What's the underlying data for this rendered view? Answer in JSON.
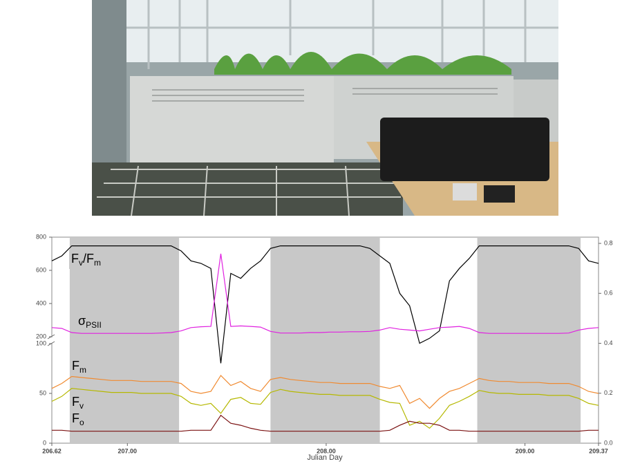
{
  "chart_data": {
    "type": "line",
    "xlabel": "Julian Day",
    "x": [
      206.62,
      206.67,
      206.72,
      206.77,
      206.82,
      206.87,
      206.92,
      206.97,
      207.02,
      207.07,
      207.12,
      207.17,
      207.22,
      207.27,
      207.32,
      207.37,
      207.42,
      207.47,
      207.52,
      207.57,
      207.62,
      207.67,
      207.72,
      207.77,
      207.82,
      207.87,
      207.92,
      207.97,
      208.02,
      208.07,
      208.12,
      208.17,
      208.22,
      208.27,
      208.32,
      208.37,
      208.42,
      208.47,
      208.52,
      208.57,
      208.62,
      208.67,
      208.72,
      208.77,
      208.82,
      208.87,
      208.92,
      208.97,
      209.02,
      209.07,
      209.12,
      209.17,
      209.22,
      209.27,
      209.32,
      209.37
    ],
    "xlim": [
      206.62,
      209.37
    ],
    "xticks": [
      206.62,
      {
        "value": 207,
        "label": "207.00"
      },
      {
        "value": 208,
        "label": "208.00"
      },
      {
        "value": 209,
        "label": "209.00"
      },
      209.37
    ],
    "ylim": [
      0,
      100
    ],
    "yticks": [
      0,
      50,
      100
    ],
    "ylim_upper": [
      200,
      800
    ],
    "yticks_upper": [
      200,
      400,
      600,
      800
    ],
    "y2lim": [
      0,
      0.825
    ],
    "y2ticks": [
      {
        "value": 0,
        "label": "0.0"
      },
      {
        "value": 0.2,
        "label": "0.2"
      },
      {
        "value": 0.4,
        "label": "0.4"
      },
      {
        "value": 0.6,
        "label": "0.6"
      },
      {
        "value": 0.8,
        "label": "0.8"
      }
    ],
    "shaded_regions": [
      [
        206.71,
        207.26
      ],
      [
        207.72,
        208.27
      ],
      [
        208.76,
        209.28
      ]
    ],
    "shade_color": "#c8c8c8",
    "series": [
      {
        "label": [
          {
            "text": "F"
          },
          {
            "text": "v",
            "sub": true
          },
          {
            "text": "/F"
          },
          {
            "text": "m",
            "sub": true
          }
        ],
        "color": "#000000",
        "axis": "y2",
        "values": [
          0.73,
          0.75,
          0.79,
          0.79,
          0.79,
          0.79,
          0.79,
          0.79,
          0.79,
          0.79,
          0.79,
          0.79,
          0.79,
          0.77,
          0.73,
          0.72,
          0.7,
          0.32,
          0.68,
          0.66,
          0.7,
          0.73,
          0.78,
          0.79,
          0.79,
          0.79,
          0.79,
          0.79,
          0.79,
          0.79,
          0.79,
          0.79,
          0.78,
          0.75,
          0.72,
          0.6,
          0.55,
          0.4,
          0.42,
          0.45,
          0.65,
          0.7,
          0.74,
          0.79,
          0.79,
          0.79,
          0.79,
          0.79,
          0.79,
          0.79,
          0.79,
          0.79,
          0.79,
          0.78,
          0.73,
          0.72
        ]
      },
      {
        "label": [
          {
            "text": "σ"
          },
          {
            "text": "PSII",
            "sub": true
          }
        ],
        "color": "#e020e0",
        "axis": "upper",
        "values": [
          255,
          250,
          225,
          220,
          220,
          220,
          220,
          220,
          220,
          220,
          220,
          222,
          225,
          235,
          255,
          260,
          262,
          700,
          262,
          265,
          262,
          258,
          232,
          222,
          222,
          222,
          225,
          225,
          228,
          228,
          230,
          230,
          232,
          240,
          255,
          245,
          240,
          235,
          245,
          255,
          258,
          262,
          250,
          225,
          220,
          220,
          220,
          220,
          220,
          220,
          220,
          220,
          222,
          240,
          250,
          255
        ]
      },
      {
        "label": [
          {
            "text": "F"
          },
          {
            "text": "m",
            "sub": true
          }
        ],
        "color": "#f08a30",
        "axis": "lower",
        "values": [
          55,
          60,
          67,
          66,
          65,
          64,
          63,
          63,
          63,
          62,
          62,
          62,
          62,
          60,
          52,
          50,
          52,
          68,
          58,
          62,
          55,
          52,
          64,
          66,
          64,
          63,
          62,
          61,
          61,
          60,
          60,
          60,
          60,
          57,
          55,
          58,
          40,
          45,
          35,
          45,
          52,
          55,
          60,
          65,
          63,
          62,
          62,
          61,
          61,
          61,
          60,
          60,
          60,
          57,
          52,
          50
        ]
      },
      {
        "label": [
          {
            "text": "F"
          },
          {
            "text": "v",
            "sub": true
          }
        ],
        "color": "#b5b800",
        "axis": "lower",
        "values": [
          42,
          47,
          55,
          54,
          53,
          52,
          51,
          51,
          51,
          50,
          50,
          50,
          50,
          47,
          40,
          38,
          40,
          30,
          44,
          46,
          40,
          39,
          51,
          54,
          52,
          51,
          50,
          49,
          49,
          48,
          48,
          48,
          48,
          44,
          41,
          40,
          18,
          22,
          15,
          25,
          38,
          42,
          47,
          53,
          51,
          50,
          50,
          49,
          49,
          49,
          48,
          48,
          48,
          45,
          40,
          38
        ]
      },
      {
        "label": [
          {
            "text": "F"
          },
          {
            "text": "o",
            "sub": true
          }
        ],
        "color": "#7a1010",
        "axis": "lower",
        "values": [
          13,
          13,
          12,
          12,
          12,
          12,
          12,
          12,
          12,
          12,
          12,
          12,
          12,
          12,
          13,
          13,
          13,
          28,
          20,
          18,
          15,
          13,
          12,
          12,
          12,
          12,
          12,
          12,
          12,
          12,
          12,
          12,
          12,
          12,
          13,
          18,
          22,
          20,
          20,
          18,
          13,
          13,
          12,
          12,
          12,
          12,
          12,
          12,
          12,
          12,
          12,
          12,
          12,
          12,
          13,
          13
        ]
      }
    ]
  }
}
